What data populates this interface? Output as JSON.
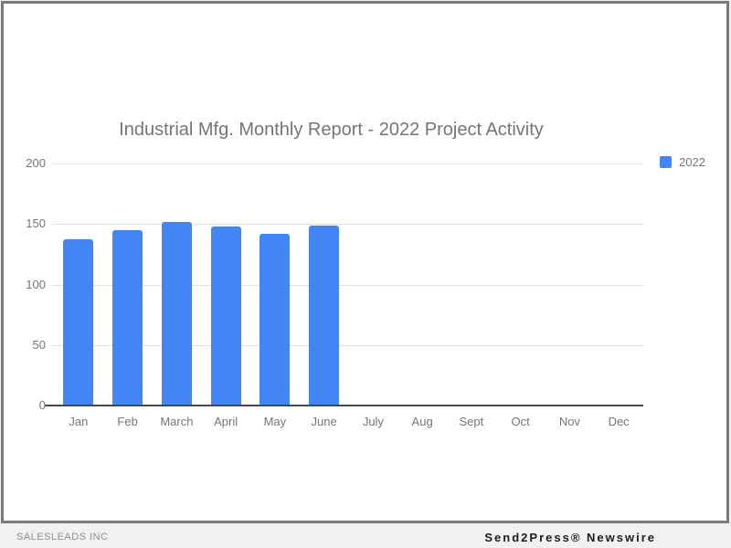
{
  "chart_data": {
    "type": "bar",
    "title": "Industrial Mfg. Monthly Report - 2022 Project Activity",
    "categories": [
      "Jan",
      "Feb",
      "March",
      "April",
      "May",
      "June",
      "July",
      "Aug",
      "Sept",
      "Oct",
      "Nov",
      "Dec"
    ],
    "series": [
      {
        "name": "2022",
        "color": "#4285f4",
        "values": [
          137,
          145,
          152,
          148,
          142,
          149,
          0,
          0,
          0,
          0,
          0,
          0
        ]
      }
    ],
    "xlabel": "",
    "ylabel": "",
    "ylim": [
      0,
      200
    ],
    "yticks": [
      0,
      50,
      100,
      150,
      200
    ],
    "grid": true,
    "legend_position": "top-right",
    "colors": {
      "bar": "#4285f4",
      "gridline": "#e0e0e0",
      "baseline": "#474747",
      "title_text": "#757575",
      "axis_text": "#757575",
      "frame_border": "#7b7b7b",
      "card_background": "#ffffff",
      "page_background": "#f1f1f1"
    }
  },
  "footer": {
    "left_text": "SALESLEADS INC",
    "right_text": "Send2Press® Newswire"
  }
}
